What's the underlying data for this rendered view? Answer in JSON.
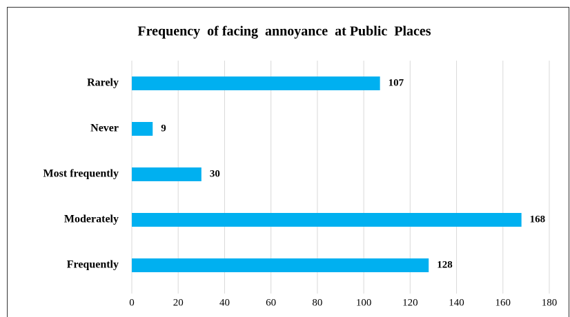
{
  "chart_data": {
    "type": "bar",
    "orientation": "horizontal",
    "title": "Frequency  of facing  annoyance  at Public  Places",
    "categories": [
      "Rarely",
      "Never",
      "Most frequently",
      "Moderately",
      "Frequently"
    ],
    "values": [
      107,
      9,
      30,
      168,
      128
    ],
    "color": "#00b0f0",
    "xlim": [
      0,
      180
    ],
    "xticks": [
      0,
      20,
      40,
      60,
      80,
      100,
      120,
      140,
      160,
      180
    ],
    "grid": true
  }
}
